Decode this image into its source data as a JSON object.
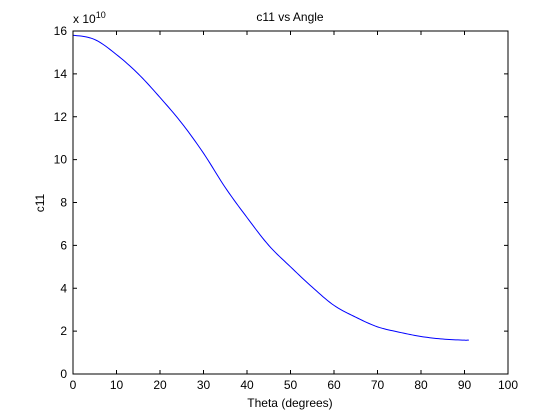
{
  "chart_data": {
    "type": "line",
    "title": "c11 vs Angle",
    "xlabel": "Theta (degrees)",
    "ylabel": "c11",
    "xlim": [
      0,
      100
    ],
    "ylim": [
      0,
      16
    ],
    "x_ticks": [
      0,
      10,
      20,
      30,
      40,
      50,
      60,
      70,
      80,
      90,
      100
    ],
    "y_ticks": [
      0,
      2,
      4,
      6,
      8,
      10,
      12,
      14,
      16
    ],
    "y_multiplier": {
      "base": "x 10",
      "exponent": "10"
    },
    "grid": false,
    "legend": "none",
    "colors": {
      "series": "#0000ff",
      "axes": "#000000"
    },
    "series": [
      {
        "x": [
          0,
          5,
          10,
          15,
          20,
          25,
          30,
          35,
          40,
          45,
          50,
          55,
          60,
          65,
          70,
          75,
          80,
          85,
          90,
          91
        ],
        "values": [
          15.8,
          15.6,
          14.9,
          14.0,
          12.9,
          11.7,
          10.3,
          8.7,
          7.3,
          6.0,
          5.0,
          4.05,
          3.2,
          2.65,
          2.2,
          1.95,
          1.75,
          1.63,
          1.58,
          1.58
        ]
      }
    ]
  }
}
